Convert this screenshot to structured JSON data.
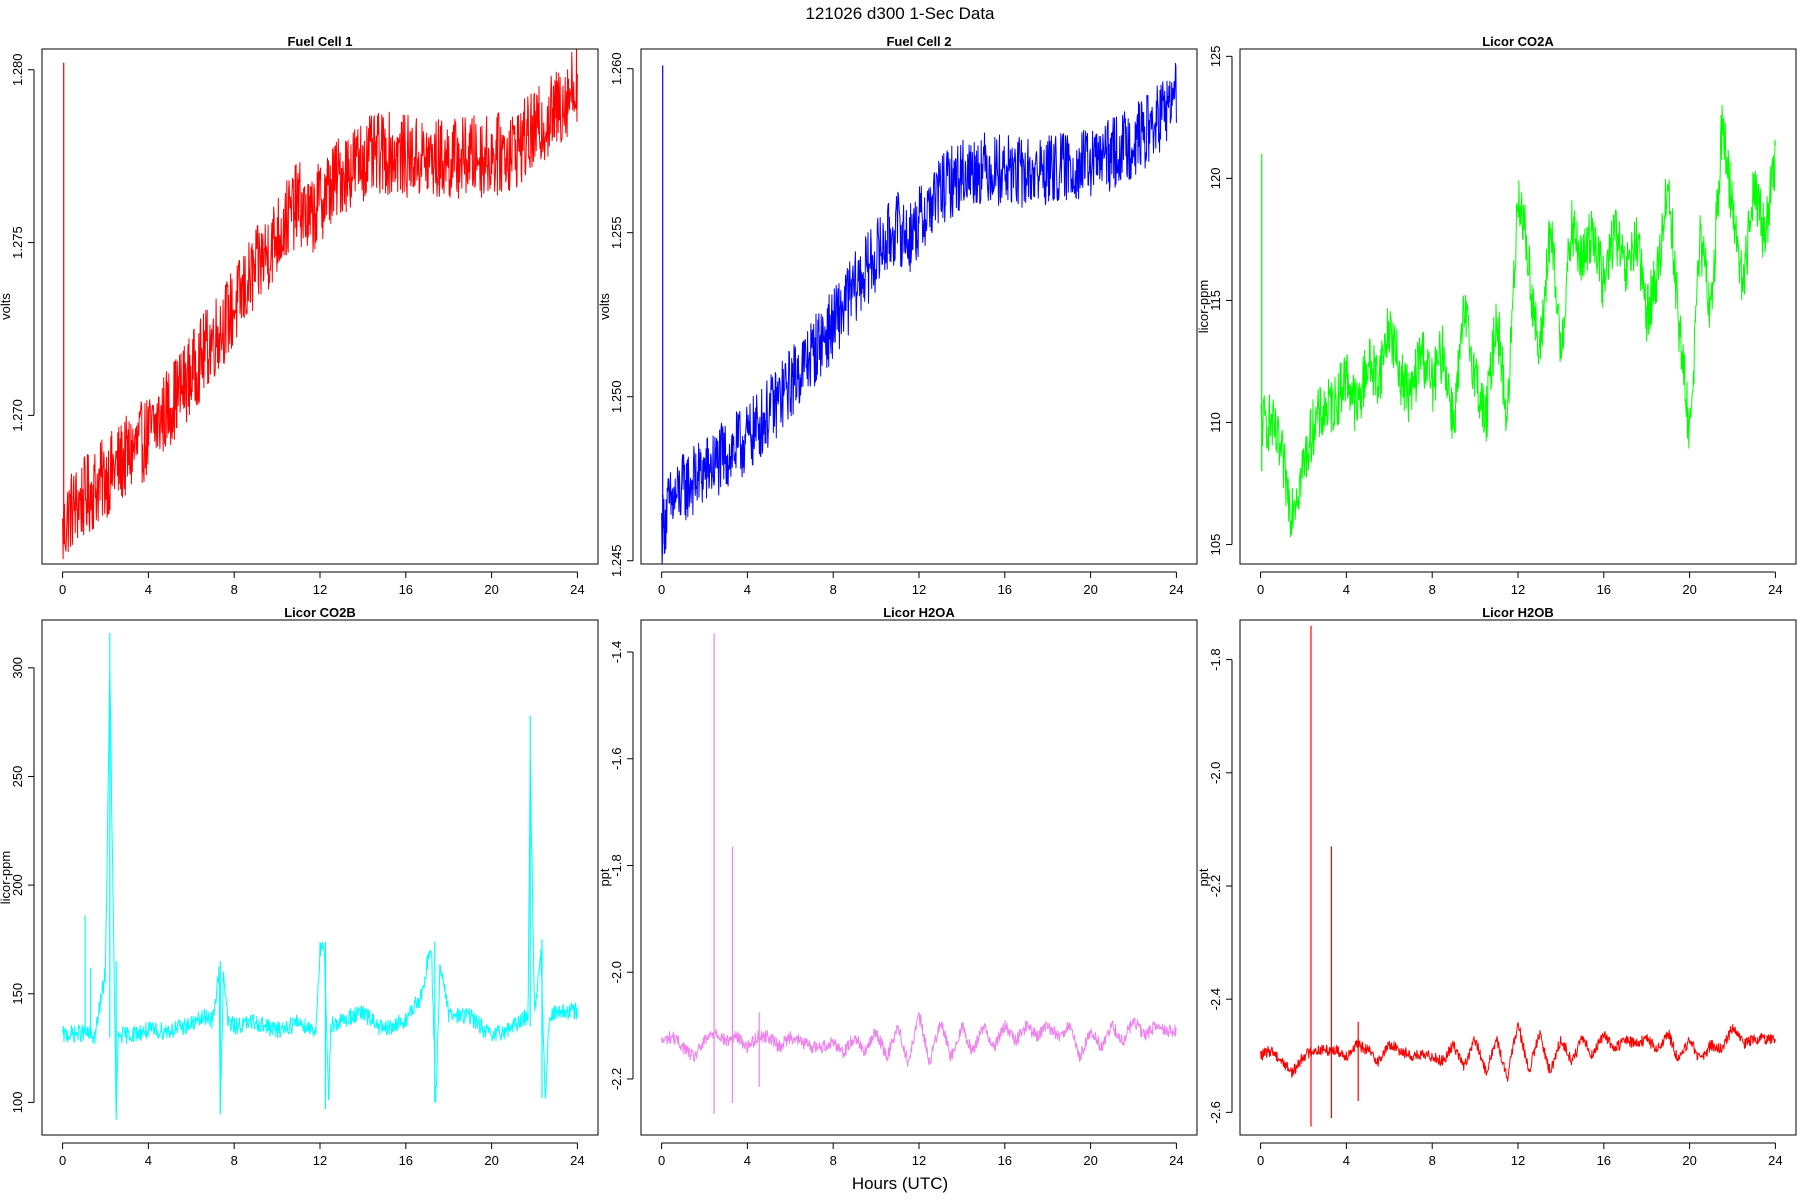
{
  "figure": {
    "title": "121026   d300   1-Sec Data",
    "xlabel": "Hours (UTC)"
  },
  "chart_data": [
    {
      "type": "line",
      "title": "Fuel Cell 1",
      "ylabel": "volts",
      "color": "#ff0000",
      "xlim": [
        0,
        24
      ],
      "ylim": [
        1.2657,
        1.2806
      ],
      "xticks": [
        0,
        4,
        8,
        12,
        16,
        20,
        24
      ],
      "yticks": [
        1.27,
        1.275,
        1.28
      ],
      "ytick_labels": [
        "1.270",
        "1.275",
        "1.280"
      ],
      "noise": 0.0012,
      "spikes": [
        [
          0.05,
          1.2802,
          1.2663
        ]
      ],
      "series": [
        {
          "x": [
            0,
            0.3,
            1,
            2,
            3,
            4,
            5,
            6,
            7,
            8,
            9,
            10,
            11,
            11.5,
            12,
            13,
            14,
            15,
            16,
            17,
            18,
            19,
            20,
            21,
            22,
            23,
            24
          ],
          "y": [
            1.2665,
            1.2672,
            1.2676,
            1.2682,
            1.2688,
            1.2694,
            1.2703,
            1.2712,
            1.2722,
            1.2731,
            1.2742,
            1.2752,
            1.2762,
            1.2756,
            1.2762,
            1.277,
            1.2774,
            1.2776,
            1.2775,
            1.2774,
            1.2774,
            1.2775,
            1.2775,
            1.2777,
            1.2782,
            1.2788,
            1.2797
          ]
        }
      ]
    },
    {
      "type": "line",
      "title": "Fuel Cell 2",
      "ylabel": "volts",
      "color": "#0000ff",
      "xlim": [
        0,
        24
      ],
      "ylim": [
        1.2449,
        1.2606
      ],
      "xticks": [
        0,
        4,
        8,
        12,
        16,
        20,
        24
      ],
      "yticks": [
        1.245,
        1.25,
        1.255,
        1.26
      ],
      "ytick_labels": [
        "1.245",
        "1.250",
        "1.255",
        "1.260"
      ],
      "noise": 0.0011,
      "spikes": [
        [
          0.05,
          1.2601,
          1.2455
        ]
      ],
      "series": [
        {
          "x": [
            0,
            0.3,
            1,
            2,
            3,
            4,
            5,
            6,
            7,
            8,
            9,
            10,
            11,
            11.5,
            12,
            13,
            14,
            15,
            16,
            17,
            18,
            19,
            20,
            21,
            22,
            23,
            24
          ],
          "y": [
            1.2459,
            1.2466,
            1.2472,
            1.2477,
            1.2482,
            1.2487,
            1.2495,
            1.2504,
            1.2513,
            1.2522,
            1.2533,
            1.2543,
            1.2552,
            1.2548,
            1.2553,
            1.2563,
            1.2568,
            1.257,
            1.2569,
            1.2568,
            1.2569,
            1.257,
            1.2571,
            1.2574,
            1.2578,
            1.2583,
            1.2592
          ]
        }
      ]
    },
    {
      "type": "line",
      "title": "Licor CO2A",
      "ylabel": "licor-ppm",
      "color": "#00ff00",
      "xlim": [
        0,
        24
      ],
      "ylim": [
        104.2,
        125.3
      ],
      "xticks": [
        0,
        4,
        8,
        12,
        16,
        20,
        24
      ],
      "yticks": [
        105,
        110,
        115,
        120,
        125
      ],
      "ytick_labels": [
        "105",
        "110",
        "115",
        "120",
        "125"
      ],
      "noise": 1.2,
      "spikes": [
        [
          0.05,
          121.0,
          108.0
        ]
      ],
      "series": [
        {
          "x": [
            0,
            0.5,
            1,
            1.4,
            1.8,
            2.5,
            3,
            3.5,
            4,
            4.5,
            5,
            5.5,
            6,
            6.5,
            7,
            7.5,
            8,
            8.5,
            9,
            9.5,
            10,
            10.5,
            11,
            11.5,
            12,
            12.3,
            13,
            13.5,
            14,
            14.5,
            15,
            15.5,
            16,
            16.5,
            17,
            17.5,
            18,
            18.5,
            19,
            19.5,
            20,
            20.5,
            21,
            21.5,
            22,
            22.5,
            23,
            23.5,
            24
          ],
          "y": [
            110.0,
            110.0,
            108.5,
            106.5,
            107.5,
            110.0,
            110.5,
            110.8,
            112.0,
            110.5,
            112.5,
            111.8,
            114.0,
            112.0,
            111.0,
            113.0,
            111.5,
            113.0,
            110.0,
            114.5,
            112.0,
            110.0,
            114.5,
            110.0,
            119.5,
            118.0,
            112.5,
            118.0,
            113.0,
            118.0,
            116.5,
            118.0,
            115.5,
            118.0,
            116.0,
            117.5,
            114.5,
            116.0,
            120.0,
            114.0,
            109.5,
            117.5,
            114.5,
            122.0,
            119.0,
            115.5,
            120.0,
            117.5,
            121.0
          ]
        }
      ]
    },
    {
      "type": "line",
      "title": "Licor CO2B",
      "ylabel": "licor-ppm",
      "color": "#00ffff",
      "xlim": [
        0,
        24
      ],
      "ylim": [
        85,
        322
      ],
      "xticks": [
        0,
        4,
        8,
        12,
        16,
        20,
        24
      ],
      "yticks": [
        100,
        150,
        200,
        250,
        300
      ],
      "ytick_labels": [
        "100",
        "150",
        "200",
        "250",
        "300"
      ],
      "noise": 4,
      "spikes": [
        [
          1.05,
          186,
          133
        ],
        [
          1.3,
          162,
          133
        ],
        [
          2.2,
          316,
          130
        ],
        [
          2.5,
          165,
          92
        ],
        [
          7.35,
          165,
          95
        ],
        [
          12.25,
          174,
          97
        ],
        [
          17.35,
          174,
          100
        ],
        [
          21.8,
          278,
          135
        ],
        [
          22.35,
          175,
          102
        ]
      ],
      "series": [
        {
          "x": [
            0,
            1,
            1.5,
            2,
            2.2,
            2.4,
            2.5,
            2.6,
            3,
            4,
            5,
            6,
            6.8,
            7,
            7.3,
            7.35,
            7.5,
            7.7,
            8,
            9,
            10,
            11,
            11.8,
            12,
            12.2,
            12.4,
            12.5,
            13,
            13.5,
            14,
            15,
            16,
            16.8,
            17,
            17.2,
            17.4,
            17.6,
            18,
            19,
            20,
            21,
            21.7,
            21.8,
            22,
            22.3,
            22.5,
            22.7,
            23,
            24
          ],
          "y": [
            131,
            132,
            130,
            160,
            300,
            160,
            93,
            131,
            131,
            133,
            133,
            136,
            140,
            137,
            160,
            95,
            162,
            137,
            135,
            137,
            133,
            137,
            133,
            170,
            170,
            98,
            136,
            137,
            140,
            141,
            133,
            138,
            150,
            165,
            170,
            100,
            165,
            140,
            140,
            130,
            135,
            140,
            260,
            140,
            170,
            102,
            140,
            141,
            142
          ]
        }
      ]
    },
    {
      "type": "line",
      "title": "Licor H2OA",
      "ylabel": "ppt",
      "color": "#ee82ee",
      "xlim": [
        0,
        24
      ],
      "ylim": [
        -2.305,
        -1.34
      ],
      "xticks": [
        0,
        4,
        8,
        12,
        16,
        20,
        24
      ],
      "yticks": [
        -2.2,
        -2.0,
        -1.8,
        -1.6,
        -1.4
      ],
      "ytick_labels": [
        "-2.2",
        "-2.0",
        "-1.8",
        "-1.6",
        "-1.4"
      ],
      "noise": 0.012,
      "spikes": [
        [
          2.45,
          -1.365,
          -2.265
        ],
        [
          3.3,
          -1.765,
          -2.245
        ],
        [
          4.55,
          -2.075,
          -2.215
        ]
      ],
      "series": [
        {
          "x": [
            0,
            0.5,
            1,
            1.5,
            2,
            2.5,
            3,
            3.5,
            4,
            4.5,
            5,
            5.5,
            6,
            6.5,
            7,
            7.5,
            8,
            8.5,
            9,
            9.5,
            10,
            10.5,
            11,
            11.5,
            12,
            12.5,
            13,
            13.5,
            14,
            14.5,
            15,
            15.5,
            16,
            16.5,
            17,
            17.5,
            18,
            18.5,
            19,
            19.5,
            20,
            20.5,
            21,
            21.5,
            22,
            22.5,
            23,
            23.5,
            24
          ],
          "y": [
            -2.13,
            -2.12,
            -2.14,
            -2.16,
            -2.13,
            -2.11,
            -2.13,
            -2.12,
            -2.14,
            -2.12,
            -2.12,
            -2.14,
            -2.12,
            -2.13,
            -2.14,
            -2.14,
            -2.13,
            -2.15,
            -2.12,
            -2.15,
            -2.11,
            -2.16,
            -2.1,
            -2.17,
            -2.08,
            -2.17,
            -2.09,
            -2.16,
            -2.1,
            -2.15,
            -2.1,
            -2.14,
            -2.1,
            -2.13,
            -2.1,
            -2.12,
            -2.1,
            -2.12,
            -2.1,
            -2.16,
            -2.11,
            -2.14,
            -2.1,
            -2.13,
            -2.09,
            -2.12,
            -2.1,
            -2.11,
            -2.11
          ]
        }
      ]
    },
    {
      "type": "line",
      "title": "Licor H2OB",
      "ylabel": "ppt",
      "color": "#ff0000",
      "xlim": [
        0,
        24
      ],
      "ylim": [
        -2.64,
        -1.73
      ],
      "xticks": [
        0,
        4,
        8,
        12,
        16,
        20,
        24
      ],
      "yticks": [
        -2.6,
        -2.4,
        -2.2,
        -2.0,
        -1.8
      ],
      "ytick_labels": [
        "-2.6",
        "-2.4",
        "-2.2",
        "-2.0",
        "-1.8"
      ],
      "noise": 0.01,
      "spikes": [
        [
          2.35,
          -1.74,
          -2.625
        ],
        [
          3.3,
          -2.13,
          -2.61
        ],
        [
          4.55,
          -2.44,
          -2.58
        ]
      ],
      "series": [
        {
          "x": [
            0,
            0.5,
            1,
            1.5,
            2,
            2.5,
            3,
            3.5,
            4,
            4.5,
            5,
            5.5,
            6,
            6.5,
            7,
            7.5,
            8,
            8.5,
            9,
            9.5,
            10,
            10.5,
            11,
            11.5,
            12,
            12.5,
            13,
            13.5,
            14,
            14.5,
            15,
            15.5,
            16,
            16.5,
            17,
            17.5,
            18,
            18.5,
            19,
            19.5,
            20,
            20.5,
            21,
            21.5,
            22,
            22.5,
            23,
            23.5,
            24
          ],
          "y": [
            -2.5,
            -2.49,
            -2.51,
            -2.53,
            -2.5,
            -2.49,
            -2.49,
            -2.49,
            -2.5,
            -2.48,
            -2.49,
            -2.51,
            -2.48,
            -2.49,
            -2.5,
            -2.5,
            -2.5,
            -2.51,
            -2.48,
            -2.52,
            -2.47,
            -2.53,
            -2.47,
            -2.54,
            -2.44,
            -2.53,
            -2.46,
            -2.53,
            -2.47,
            -2.51,
            -2.47,
            -2.5,
            -2.46,
            -2.49,
            -2.47,
            -2.48,
            -2.47,
            -2.49,
            -2.46,
            -2.51,
            -2.47,
            -2.51,
            -2.48,
            -2.49,
            -2.45,
            -2.48,
            -2.47,
            -2.47,
            -2.47
          ]
        }
      ]
    }
  ]
}
